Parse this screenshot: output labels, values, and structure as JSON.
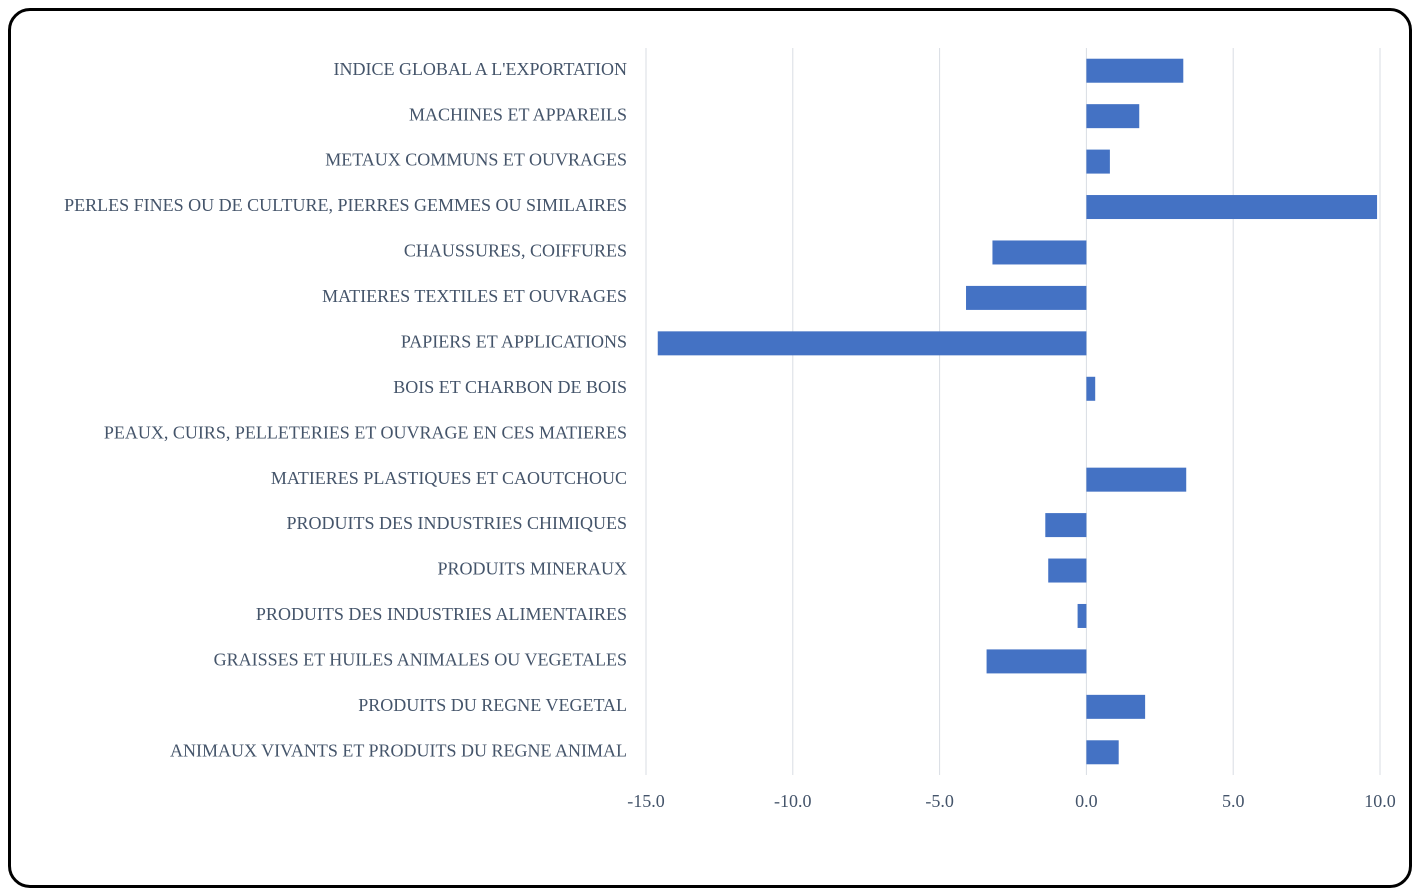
{
  "chart_data": {
    "type": "bar",
    "orientation": "horizontal",
    "categories": [
      "INDICE GLOBAL A L'EXPORTATION",
      "MACHINES ET APPAREILS",
      "METAUX COMMUNS ET OUVRAGES",
      "PERLES FINES OU DE CULTURE, PIERRES GEMMES OU SIMILAIRES",
      "CHAUSSURES, COIFFURES",
      "MATIERES TEXTILES ET OUVRAGES",
      "PAPIERS ET APPLICATIONS",
      "BOIS ET CHARBON DE BOIS",
      "PEAUX, CUIRS, PELLETERIES ET OUVRAGE EN CES MATIERES",
      "MATIERES PLASTIQUES ET CAOUTCHOUC",
      "PRODUITS DES INDUSTRIES CHIMIQUES",
      "PRODUITS MINERAUX",
      "PRODUITS DES INDUSTRIES ALIMENTAIRES",
      "GRAISSES ET HUILES ANIMALES OU VEGETALES",
      "PRODUITS DU REGNE VEGETAL",
      "ANIMAUX VIVANTS ET PRODUITS DU REGNE ANIMAL"
    ],
    "values": [
      3.3,
      1.8,
      0.8,
      9.9,
      -3.2,
      -4.1,
      -14.6,
      0.3,
      0,
      3.4,
      -1.4,
      -1.3,
      -0.3,
      -3.4,
      2.0,
      1.1
    ],
    "color": "#4472c4",
    "xlim": [
      -15,
      10
    ],
    "xticks": [
      {
        "value": -15,
        "label": "-15.0"
      },
      {
        "value": -10,
        "label": "-10.0"
      },
      {
        "value": -5,
        "label": "-5.0"
      },
      {
        "value": 0,
        "label": "0.0"
      },
      {
        "value": 5,
        "label": "5.0"
      },
      {
        "value": 10,
        "label": "10.0"
      }
    ],
    "grid": true
  }
}
